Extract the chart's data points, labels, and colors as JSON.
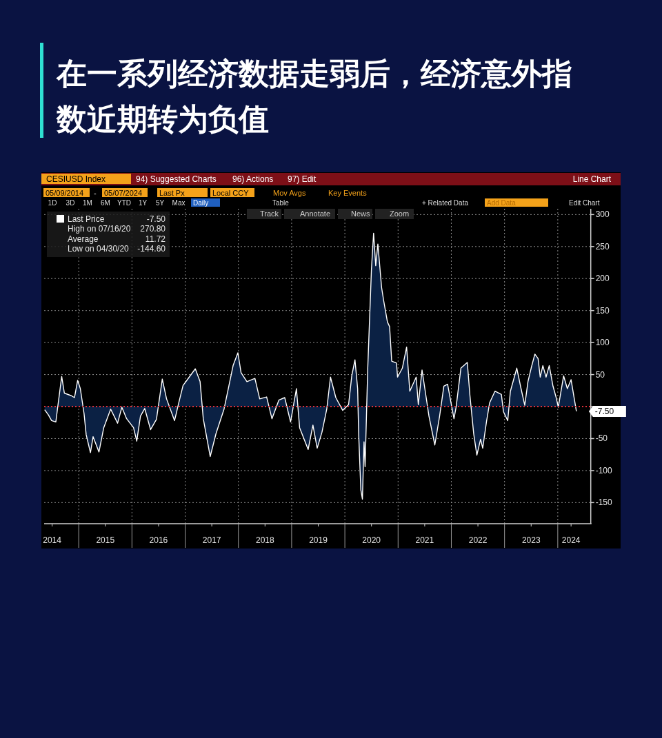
{
  "chart_data": {
    "type": "area",
    "title": "在一系列经济数据走弱后，经济意外指数近期转为负值",
    "annotations": [
      "CESIUSD Index",
      "94) Suggested Charts",
      "96) Actions",
      "97) Edit",
      "Line Chart",
      "05/09/2014",
      "-",
      "05/07/2024",
      "Last Px",
      "Local CCY",
      "Mov Avgs",
      "Key Events",
      "1D",
      "3D",
      "1M",
      "6M",
      "YTD",
      "1Y",
      "5Y",
      "Max",
      "Daily",
      "Table",
      "+ Related Data",
      "Add Data",
      "Edit Chart",
      "Track",
      "Annotate",
      "News",
      "Zoom",
      "-7.50",
      "High on 07/16/20",
      "270.80",
      "Average",
      "11.72",
      "Low on 04/30/20",
      "-144.60",
      {
        "text": "-7.50",
        "x": 2024.35,
        "y": -7.5
      }
    ],
    "x": [
      2014.36,
      2014.43,
      2014.49,
      2014.57,
      2014.6,
      2014.68,
      2014.73,
      2014.86,
      2014.92,
      2014.98,
      2015.03,
      2015.1,
      2015.14,
      2015.22,
      2015.27,
      2015.38,
      2015.47,
      2015.6,
      2015.73,
      2015.81,
      2015.9,
      2016.03,
      2016.09,
      2016.16,
      2016.24,
      2016.35,
      2016.46,
      2016.57,
      2016.65,
      2016.8,
      2016.88,
      2016.96,
      2017.04,
      2017.19,
      2017.28,
      2017.34,
      2017.47,
      2017.58,
      2017.73,
      2017.82,
      2017.9,
      2017.99,
      2018.05,
      2018.16,
      2018.31,
      2018.4,
      2018.53,
      2018.63,
      2018.76,
      2018.87,
      2018.98,
      2019.09,
      2019.15,
      2019.31,
      2019.4,
      2019.48,
      2019.57,
      2019.66,
      2019.73,
      2019.83,
      2019.96,
      2020.07,
      2020.13,
      2020.19,
      2020.24,
      2020.26,
      2020.3,
      2020.33,
      2020.36,
      2020.38,
      2020.43,
      2020.5,
      2020.54,
      2020.58,
      2020.62,
      2020.69,
      2020.73,
      2020.8,
      2020.84,
      2020.88,
      2020.97,
      2020.99,
      2021.08,
      2021.16,
      2021.22,
      2021.34,
      2021.38,
      2021.45,
      2021.51,
      2021.58,
      2021.69,
      2021.78,
      2021.86,
      2021.93,
      2022.05,
      2022.09,
      2022.18,
      2022.3,
      2022.35,
      2022.42,
      2022.48,
      2022.55,
      2022.59,
      2022.66,
      2022.72,
      2022.82,
      2022.94,
      2022.98,
      2023.06,
      2023.11,
      2023.23,
      2023.31,
      2023.38,
      2023.44,
      2023.5,
      2023.57,
      2023.63,
      2023.67,
      2023.72,
      2023.78,
      2023.84,
      2023.91,
      2023.97,
      2024.01,
      2024.11,
      2024.18,
      2024.25,
      2024.35
    ],
    "series": [
      {
        "name": "Last Price",
        "color": "#ffffff",
        "values": [
          -5,
          -13,
          -22,
          -24,
          -4,
          47,
          21,
          17,
          14,
          41,
          28,
          -11,
          -44,
          -72,
          -47,
          -71,
          -33,
          -4,
          -26,
          -1,
          -19,
          -33,
          -54,
          -15,
          -3,
          -36,
          -20,
          43,
          12,
          -22,
          6,
          33,
          42,
          59,
          39,
          -19,
          -78,
          -42,
          -4,
          32,
          64,
          84,
          53,
          39,
          44,
          12,
          15,
          -19,
          10,
          14,
          -24,
          28,
          -33,
          -67,
          -29,
          -65,
          -40,
          -4,
          46,
          14,
          -6,
          3,
          48,
          73,
          28,
          -44,
          -130,
          -144.6,
          -55,
          -94,
          60,
          215,
          270.8,
          220,
          254,
          186,
          165,
          132,
          125,
          71,
          68,
          46,
          60,
          93,
          24,
          46,
          3,
          57,
          24,
          -15,
          -60,
          -15,
          32,
          35,
          -19,
          -1,
          60,
          69,
          17,
          -42,
          -76,
          -51,
          -65,
          -24,
          6,
          24,
          19,
          -8,
          -22,
          24,
          60,
          28,
          2,
          39,
          60,
          82,
          75,
          46,
          64,
          46,
          64,
          32,
          14,
          -1,
          48,
          28,
          42,
          -7.5
        ]
      }
    ],
    "xlim": [
      2014.35,
      2024.62
    ],
    "ylim": [
      -183,
      309
    ],
    "xticks": [
      {
        "value": 2014.5,
        "label": "2014"
      },
      {
        "value": 2015,
        "label": null
      },
      {
        "value": 2015.5,
        "label": "2015"
      },
      {
        "value": 2016,
        "label": null
      },
      {
        "value": 2016.5,
        "label": "2016"
      },
      {
        "value": 2017,
        "label": null
      },
      {
        "value": 2017.5,
        "label": "2017"
      },
      {
        "value": 2018,
        "label": null
      },
      {
        "value": 2018.5,
        "label": "2018"
      },
      {
        "value": 2019,
        "label": null
      },
      {
        "value": 2019.5,
        "label": "2019"
      },
      {
        "value": 2020,
        "label": null
      },
      {
        "value": 2020.5,
        "label": "2020"
      },
      {
        "value": 2021,
        "label": null
      },
      {
        "value": 2021.5,
        "label": "2021"
      },
      {
        "value": 2022,
        "label": null
      },
      {
        "value": 2022.5,
        "label": "2022"
      },
      {
        "value": 2023,
        "label": null
      },
      {
        "value": 2023.5,
        "label": "2023"
      },
      {
        "value": 2024,
        "label": null
      },
      {
        "value": 2024.25,
        "label": "2024"
      }
    ],
    "yticks": [
      -150,
      -100,
      -50,
      {
        "value": 0,
        "label": null
      },
      50,
      100,
      150,
      200,
      250,
      300
    ],
    "grid": true,
    "legend": "top left",
    "ref_lines": [
      {
        "axis": "y",
        "value": 0,
        "color": "#e0313a",
        "line_style": "dotted"
      }
    ]
  }
}
